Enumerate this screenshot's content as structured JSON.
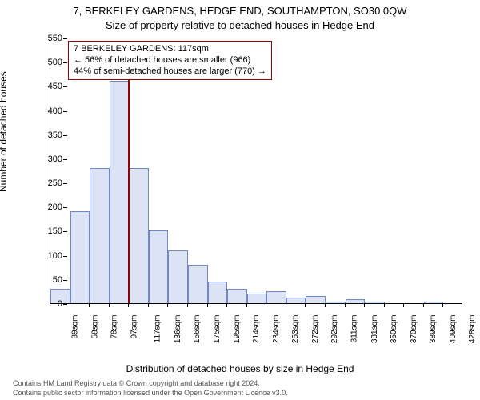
{
  "title_main": "7, BERKELEY GARDENS, HEDGE END, SOUTHAMPTON, SO30 0QW",
  "title_sub": "Size of property relative to detached houses in Hedge End",
  "ylabel": "Number of detached houses",
  "xlabel": "Distribution of detached houses by size in Hedge End",
  "footnote1": "Contains HM Land Registry data © Crown copyright and database right 2024.",
  "footnote2": "Contains public sector information licensed under the Open Government Licence v3.0.",
  "chart": {
    "type": "histogram",
    "ylim": [
      0,
      550
    ],
    "ytick_step": 50,
    "bar_fill": "#dbe3f4",
    "bar_border": "#6f87c4",
    "marker_color": "#990000",
    "marker_value_x": 117,
    "annotation": {
      "line1": "7 BERKELEY GARDENS: 117sqm",
      "line2": "← 56% of detached houses are smaller (966)",
      "line3": "44% of semi-detached houses are larger (770) →"
    },
    "bars": [
      {
        "label": "39sqm",
        "value": 30
      },
      {
        "label": "58sqm",
        "value": 190
      },
      {
        "label": "78sqm",
        "value": 280
      },
      {
        "label": "97sqm",
        "value": 460
      },
      {
        "label": "117sqm",
        "value": 280
      },
      {
        "label": "136sqm",
        "value": 150
      },
      {
        "label": "156sqm",
        "value": 110
      },
      {
        "label": "175sqm",
        "value": 80
      },
      {
        "label": "195sqm",
        "value": 45
      },
      {
        "label": "214sqm",
        "value": 30
      },
      {
        "label": "234sqm",
        "value": 20
      },
      {
        "label": "253sqm",
        "value": 25
      },
      {
        "label": "272sqm",
        "value": 12
      },
      {
        "label": "292sqm",
        "value": 15
      },
      {
        "label": "311sqm",
        "value": 3
      },
      {
        "label": "331sqm",
        "value": 8
      },
      {
        "label": "350sqm",
        "value": 3
      },
      {
        "label": "370sqm",
        "value": 0
      },
      {
        "label": "389sqm",
        "value": 0
      },
      {
        "label": "409sqm",
        "value": 3
      },
      {
        "label": "428sqm",
        "value": 0
      }
    ]
  }
}
